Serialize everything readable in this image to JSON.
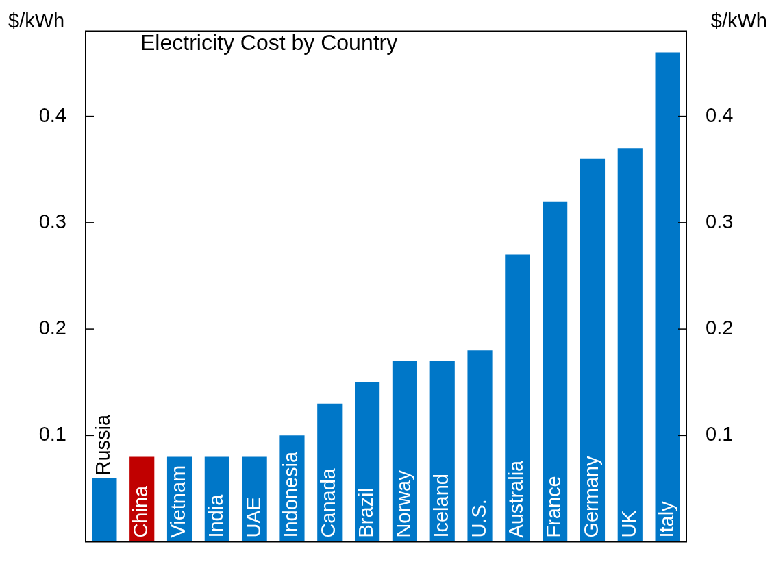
{
  "chart_data": {
    "type": "bar",
    "title": "Electricity Cost by Country",
    "ylabel": "$/kWh",
    "y2label": "$/kWh",
    "categories": [
      "Russia",
      "China",
      "Vietnam",
      "India",
      "UAE",
      "Indonesia",
      "Canada",
      "Brazil",
      "Norway",
      "Iceland",
      "U.S.",
      "Australia",
      "France",
      "Germany",
      "UK",
      "Italy"
    ],
    "values": [
      0.06,
      0.08,
      0.08,
      0.08,
      0.08,
      0.1,
      0.13,
      0.15,
      0.17,
      0.17,
      0.18,
      0.27,
      0.32,
      0.36,
      0.37,
      0.46
    ],
    "colors": [
      "#0077c8",
      "#c00000",
      "#0077c8",
      "#0077c8",
      "#0077c8",
      "#0077c8",
      "#0077c8",
      "#0077c8",
      "#0077c8",
      "#0077c8",
      "#0077c8",
      "#0077c8",
      "#0077c8",
      "#0077c8",
      "#0077c8",
      "#0077c8"
    ],
    "ylim": [
      0,
      0.48
    ],
    "yticks": [
      0.1,
      0.2,
      0.3,
      0.4
    ],
    "y2lim": [
      0,
      0.48
    ],
    "y2ticks": [
      0.1,
      0.2,
      0.3,
      0.4
    ],
    "grid": false,
    "legend": false
  }
}
